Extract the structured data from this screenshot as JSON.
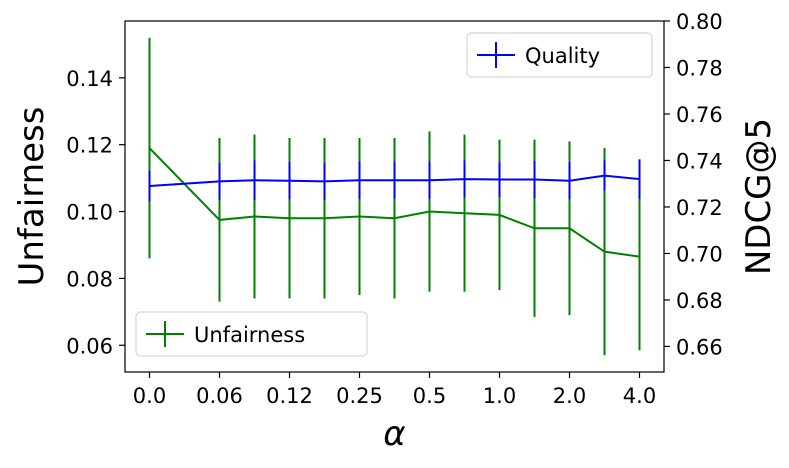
{
  "chart_data": {
    "type": "line",
    "x_tick_labels": [
      "0.0",
      "0.06",
      "0.12",
      "0.25",
      "0.5",
      "1.0",
      "2.0",
      "4.0"
    ],
    "x_positions": [
      0,
      1,
      2,
      3,
      4,
      5,
      6,
      7,
      8,
      9,
      10,
      11,
      12,
      13,
      14
    ],
    "x_tick_positions": [
      0,
      2,
      4,
      6,
      8,
      10,
      12,
      14
    ],
    "xlabel": "α",
    "xlim": [
      -0.7,
      14.7
    ],
    "y_left": {
      "label": "Unfairness",
      "lim": [
        0.052,
        0.157
      ],
      "ticks": [
        0.06,
        0.08,
        0.1,
        0.12,
        0.14
      ],
      "tick_labels": [
        "0.06",
        "0.08",
        "0.10",
        "0.12",
        "0.14"
      ]
    },
    "y_right": {
      "label": "NDCG@5",
      "lim": [
        0.649,
        0.8
      ],
      "ticks": [
        0.66,
        0.68,
        0.7,
        0.72,
        0.74,
        0.76,
        0.78,
        0.8
      ],
      "tick_labels": [
        "0.66",
        "0.68",
        "0.70",
        "0.72",
        "0.74",
        "0.76",
        "0.78",
        "0.80"
      ]
    },
    "series": [
      {
        "name": "Unfairness",
        "axis": "left",
        "color": "#008000",
        "values": [
          0.119,
          0.0975,
          0.0985,
          0.098,
          0.098,
          0.0985,
          0.098,
          0.1,
          0.0995,
          0.099,
          0.095,
          0.095,
          0.088,
          0.0865
        ],
        "x": [
          0,
          2,
          3,
          4,
          5,
          6,
          7,
          8,
          9,
          10,
          11,
          12,
          13,
          14
        ],
        "errors": [
          0.033,
          0.0245,
          0.0245,
          0.024,
          0.024,
          0.0235,
          0.024,
          0.024,
          0.0235,
          0.0225,
          0.0265,
          0.026,
          0.031,
          0.028
        ]
      },
      {
        "name": "Quality",
        "axis": "right",
        "color": "#0000ff",
        "values": [
          0.729,
          0.731,
          0.7315,
          0.7313,
          0.731,
          0.7315,
          0.7315,
          0.7315,
          0.732,
          0.7318,
          0.7318,
          0.7313,
          0.7335,
          0.732
        ],
        "x": [
          0,
          2,
          3,
          4,
          5,
          6,
          7,
          8,
          9,
          10,
          11,
          12,
          13,
          14
        ],
        "errors": [
          0.0065,
          0.008,
          0.0085,
          0.008,
          0.008,
          0.008,
          0.008,
          0.008,
          0.008,
          0.0075,
          0.008,
          0.008,
          0.0065,
          0.0085
        ]
      }
    ],
    "legend_top": {
      "label": "Quality",
      "color": "#0000ff",
      "placement": "top-right"
    },
    "legend_bottom": {
      "label": "Unfairness",
      "color": "#008000",
      "placement": "bottom-left"
    }
  }
}
